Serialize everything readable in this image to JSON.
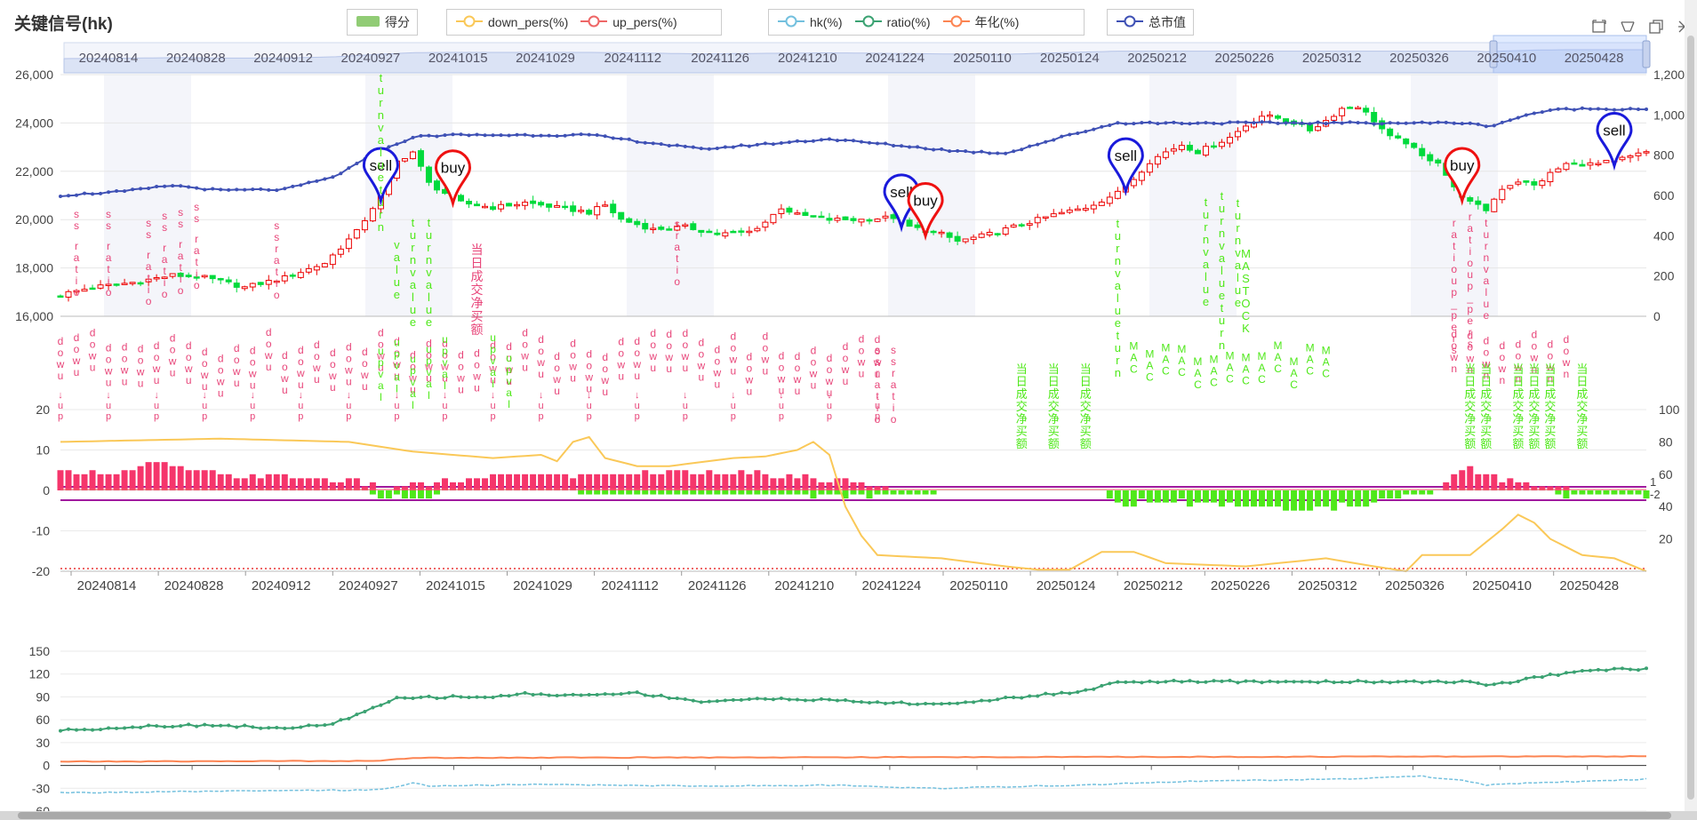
{
  "title": "关键信号(hk)",
  "legend_groups": [
    {
      "items": [
        {
          "label": "得分",
          "color": "#91cc75",
          "symbol": "rect"
        }
      ]
    },
    {
      "items": [
        {
          "label": "down_pers(%)",
          "color": "#fac858",
          "symbol": "circle"
        },
        {
          "label": "up_pers(%)",
          "color": "#ee6666",
          "symbol": "circle"
        }
      ]
    },
    {
      "items": [
        {
          "label": "hk(%)",
          "color": "#73c0de",
          "symbol": "circle"
        },
        {
          "label": "ratio(%)",
          "color": "#3ba272",
          "symbol": "circle"
        },
        {
          "label": "年化(%)",
          "color": "#fc8452",
          "symbol": "circle"
        }
      ]
    },
    {
      "items": [
        {
          "label": "总市值",
          "color": "#3f51b5",
          "symbol": "circle"
        }
      ]
    }
  ],
  "toolbar": [
    "zoom-icon",
    "zoom-reset-icon",
    "restore-icon",
    "save-image-icon"
  ],
  "chart_data": {
    "type": "line",
    "colors": {
      "up_candle": "#ec0000",
      "down_candle": "#00da3c",
      "market_cap": "#3f51b5",
      "score_pos": "#f5356b",
      "score_neg": "#4fe81a",
      "down_pers": "#fac858",
      "up_pers": "#ee6666",
      "hk": "#73c0de",
      "ratio": "#3ba272",
      "annual": "#fc8452",
      "buy_pin": "#e11",
      "sell_pin": "#1a1adb"
    },
    "x_labels": [
      "20240814",
      "20240828",
      "20240912",
      "20240927",
      "20241015",
      "20241029",
      "20241112",
      "20241126",
      "20241210",
      "20241224",
      "20250110",
      "20250124",
      "20250212",
      "20250226",
      "20250312",
      "20250326",
      "20250410",
      "20250428"
    ],
    "zoom_labels": [
      "20240814",
      "20240828",
      "20240912",
      "20240927",
      "20241015",
      "20241029",
      "20241112",
      "20241126",
      "20241210",
      "20241224",
      "20250110",
      "20250124",
      "20250212",
      "20250226",
      "20250312",
      "20250326",
      "20250410",
      "20250428"
    ],
    "price_axis": {
      "ticks": [
        "16,000",
        "18,000",
        "20,000",
        "22,000",
        "24,000",
        "26,000"
      ],
      "range": [
        16000,
        26000
      ]
    },
    "cap_axis": {
      "ticks": [
        "0",
        "200",
        "400",
        "600",
        "800",
        "1,000",
        "1,200"
      ],
      "range": [
        0,
        1200
      ]
    },
    "score_axis": {
      "ticks": [
        "-20",
        "-10",
        "0",
        "10",
        "20"
      ],
      "range": [
        -20,
        20
      ]
    },
    "pers_axis": {
      "ticks": [
        "20",
        "40",
        "60",
        "80",
        "100"
      ],
      "range": [
        0,
        100
      ]
    },
    "pers_axis_extra": [
      "1",
      "-2"
    ],
    "ratio_axis": {
      "ticks": [
        "-60",
        "-30",
        "0",
        "30",
        "60",
        "90",
        "120",
        "150"
      ],
      "range": [
        -60,
        150
      ]
    },
    "price_knots": [
      [
        0,
        16900
      ],
      [
        4,
        17200
      ],
      [
        9,
        17400
      ],
      [
        14,
        17700
      ],
      [
        18,
        17600
      ],
      [
        23,
        17200
      ],
      [
        28,
        17600
      ],
      [
        33,
        18200
      ],
      [
        37,
        19500
      ],
      [
        40,
        21000
      ],
      [
        42,
        22400
      ],
      [
        44,
        22800
      ],
      [
        46,
        21500
      ],
      [
        48,
        21100
      ],
      [
        50,
        20700
      ],
      [
        54,
        20500
      ],
      [
        58,
        20700
      ],
      [
        62,
        20500
      ],
      [
        66,
        20300
      ],
      [
        68,
        20600
      ],
      [
        70,
        20000
      ],
      [
        74,
        19600
      ],
      [
        78,
        19700
      ],
      [
        82,
        19400
      ],
      [
        86,
        19500
      ],
      [
        88,
        19900
      ],
      [
        90,
        20500
      ],
      [
        92,
        20200
      ],
      [
        96,
        20000
      ],
      [
        100,
        20000
      ],
      [
        104,
        20100
      ],
      [
        106,
        19700
      ],
      [
        110,
        19400
      ],
      [
        112,
        19100
      ],
      [
        116,
        19400
      ],
      [
        120,
        19800
      ],
      [
        124,
        20200
      ],
      [
        128,
        20500
      ],
      [
        132,
        21100
      ],
      [
        134,
        21700
      ],
      [
        136,
        22400
      ],
      [
        138,
        22800
      ],
      [
        140,
        23100
      ],
      [
        142,
        22800
      ],
      [
        144,
        23100
      ],
      [
        146,
        23400
      ],
      [
        148,
        23900
      ],
      [
        150,
        24300
      ],
      [
        152,
        24200
      ],
      [
        154,
        24000
      ],
      [
        156,
        23700
      ],
      [
        158,
        24100
      ],
      [
        160,
        24600
      ],
      [
        162,
        24700
      ],
      [
        164,
        24100
      ],
      [
        166,
        23400
      ],
      [
        168,
        23200
      ],
      [
        170,
        22600
      ],
      [
        172,
        22400
      ],
      [
        174,
        21300
      ],
      [
        176,
        20700
      ],
      [
        178,
        20400
      ],
      [
        180,
        21300
      ],
      [
        182,
        21600
      ],
      [
        184,
        21400
      ],
      [
        186,
        21900
      ],
      [
        188,
        22300
      ],
      [
        192,
        22300
      ],
      [
        196,
        22600
      ],
      [
        198,
        22800
      ]
    ],
    "cap_knots": [
      [
        0,
        600
      ],
      [
        8,
        620
      ],
      [
        14,
        650
      ],
      [
        20,
        625
      ],
      [
        28,
        630
      ],
      [
        34,
        690
      ],
      [
        40,
        820
      ],
      [
        44,
        890
      ],
      [
        48,
        900
      ],
      [
        66,
        900
      ],
      [
        80,
        830
      ],
      [
        96,
        880
      ],
      [
        112,
        820
      ],
      [
        118,
        810
      ],
      [
        126,
        900
      ],
      [
        130,
        940
      ],
      [
        132,
        960
      ],
      [
        136,
        960
      ],
      [
        176,
        960
      ],
      [
        178,
        940
      ],
      [
        184,
        1010
      ],
      [
        188,
        1030
      ],
      [
        198,
        1030
      ]
    ],
    "score_pos_knots": [
      [
        0,
        4
      ],
      [
        8,
        5
      ],
      [
        12,
        7
      ],
      [
        16,
        5
      ],
      [
        20,
        4
      ],
      [
        30,
        3
      ],
      [
        38,
        2
      ],
      [
        40,
        0
      ],
      [
        48,
        2
      ],
      [
        56,
        4
      ],
      [
        66,
        4
      ],
      [
        72,
        4
      ],
      [
        82,
        5
      ],
      [
        92,
        3
      ],
      [
        100,
        2
      ],
      [
        104,
        0
      ],
      [
        172,
        0
      ],
      [
        174,
        4
      ],
      [
        176,
        5
      ],
      [
        178,
        4
      ],
      [
        184,
        1
      ],
      [
        190,
        0
      ]
    ],
    "score_neg_knots": [
      [
        0,
        0
      ],
      [
        38,
        0
      ],
      [
        40,
        -2
      ],
      [
        46,
        -1
      ],
      [
        48,
        0
      ],
      [
        104,
        -1
      ],
      [
        108,
        -1
      ],
      [
        110,
        0
      ],
      [
        130,
        0
      ],
      [
        132,
        -3
      ],
      [
        140,
        -3
      ],
      [
        148,
        -4
      ],
      [
        156,
        -5
      ],
      [
        164,
        -3
      ],
      [
        170,
        -1
      ],
      [
        172,
        0
      ],
      [
        186,
        0
      ],
      [
        188,
        -1
      ],
      [
        198,
        -1
      ]
    ],
    "down_pers_knots": [
      [
        0,
        80
      ],
      [
        20,
        82
      ],
      [
        36,
        80
      ],
      [
        44,
        74
      ],
      [
        54,
        70
      ],
      [
        60,
        72
      ],
      [
        62,
        68
      ],
      [
        64,
        80
      ],
      [
        66,
        83
      ],
      [
        68,
        70
      ],
      [
        72,
        65
      ],
      [
        76,
        65
      ],
      [
        84,
        70
      ],
      [
        88,
        71
      ],
      [
        92,
        75
      ],
      [
        94,
        80
      ],
      [
        96,
        72
      ],
      [
        98,
        40
      ],
      [
        100,
        22
      ],
      [
        102,
        10
      ],
      [
        110,
        8
      ],
      [
        118,
        3
      ],
      [
        122,
        1
      ],
      [
        126,
        1
      ],
      [
        130,
        12
      ],
      [
        134,
        12
      ],
      [
        138,
        5
      ],
      [
        148,
        3
      ],
      [
        152,
        5
      ],
      [
        158,
        8
      ],
      [
        164,
        3
      ],
      [
        168,
        0
      ],
      [
        170,
        10
      ],
      [
        176,
        10
      ],
      [
        178,
        18
      ],
      [
        180,
        26
      ],
      [
        182,
        35
      ],
      [
        184,
        30
      ],
      [
        186,
        20
      ],
      [
        188,
        15
      ],
      [
        190,
        10
      ],
      [
        194,
        8
      ],
      [
        198,
        0
      ]
    ],
    "hk_knots": [
      [
        0,
        -36
      ],
      [
        20,
        -34
      ],
      [
        40,
        -32
      ],
      [
        44,
        -23
      ],
      [
        46,
        -27
      ],
      [
        60,
        -25
      ],
      [
        80,
        -27
      ],
      [
        96,
        -26
      ],
      [
        110,
        -30
      ],
      [
        130,
        -25
      ],
      [
        140,
        -21
      ],
      [
        160,
        -18
      ],
      [
        170,
        -14
      ],
      [
        176,
        -21
      ],
      [
        178,
        -26
      ],
      [
        184,
        -23
      ],
      [
        198,
        -18
      ]
    ],
    "ratio_knots": [
      [
        0,
        46
      ],
      [
        12,
        52
      ],
      [
        20,
        53
      ],
      [
        28,
        48
      ],
      [
        34,
        55
      ],
      [
        38,
        70
      ],
      [
        42,
        88
      ],
      [
        48,
        90
      ],
      [
        54,
        90
      ],
      [
        58,
        94
      ],
      [
        64,
        92
      ],
      [
        72,
        95
      ],
      [
        80,
        84
      ],
      [
        90,
        88
      ],
      [
        104,
        82
      ],
      [
        110,
        80
      ],
      [
        116,
        86
      ],
      [
        128,
        98
      ],
      [
        132,
        110
      ],
      [
        176,
        110
      ],
      [
        178,
        104
      ],
      [
        184,
        115
      ],
      [
        190,
        125
      ],
      [
        198,
        127
      ]
    ],
    "annual_knots": [
      [
        0,
        5
      ],
      [
        40,
        6
      ],
      [
        44,
        10
      ],
      [
        198,
        12
      ]
    ],
    "signals": [
      {
        "label": "sell",
        "type": "sell",
        "i": 40
      },
      {
        "label": "buy",
        "type": "buy",
        "i": 49
      },
      {
        "label": "sell",
        "type": "sell",
        "i": 105
      },
      {
        "label": "buy",
        "type": "buy",
        "i": 108
      },
      {
        "label": "sell",
        "type": "sell",
        "i": 133
      },
      {
        "label": "buy",
        "type": "buy",
        "i": 175
      },
      {
        "label": "sell",
        "type": "sell",
        "i": 194
      }
    ],
    "annotations": {
      "up_pers": "up_pers",
      "down_pers": "down_pers",
      "ratio": "ratio",
      "value": "value",
      "turn": "turn",
      "ma": "MA",
      "macd": "MACK",
      "stock": "STOCK",
      "net_buy": "当日成交净买额"
    }
  }
}
